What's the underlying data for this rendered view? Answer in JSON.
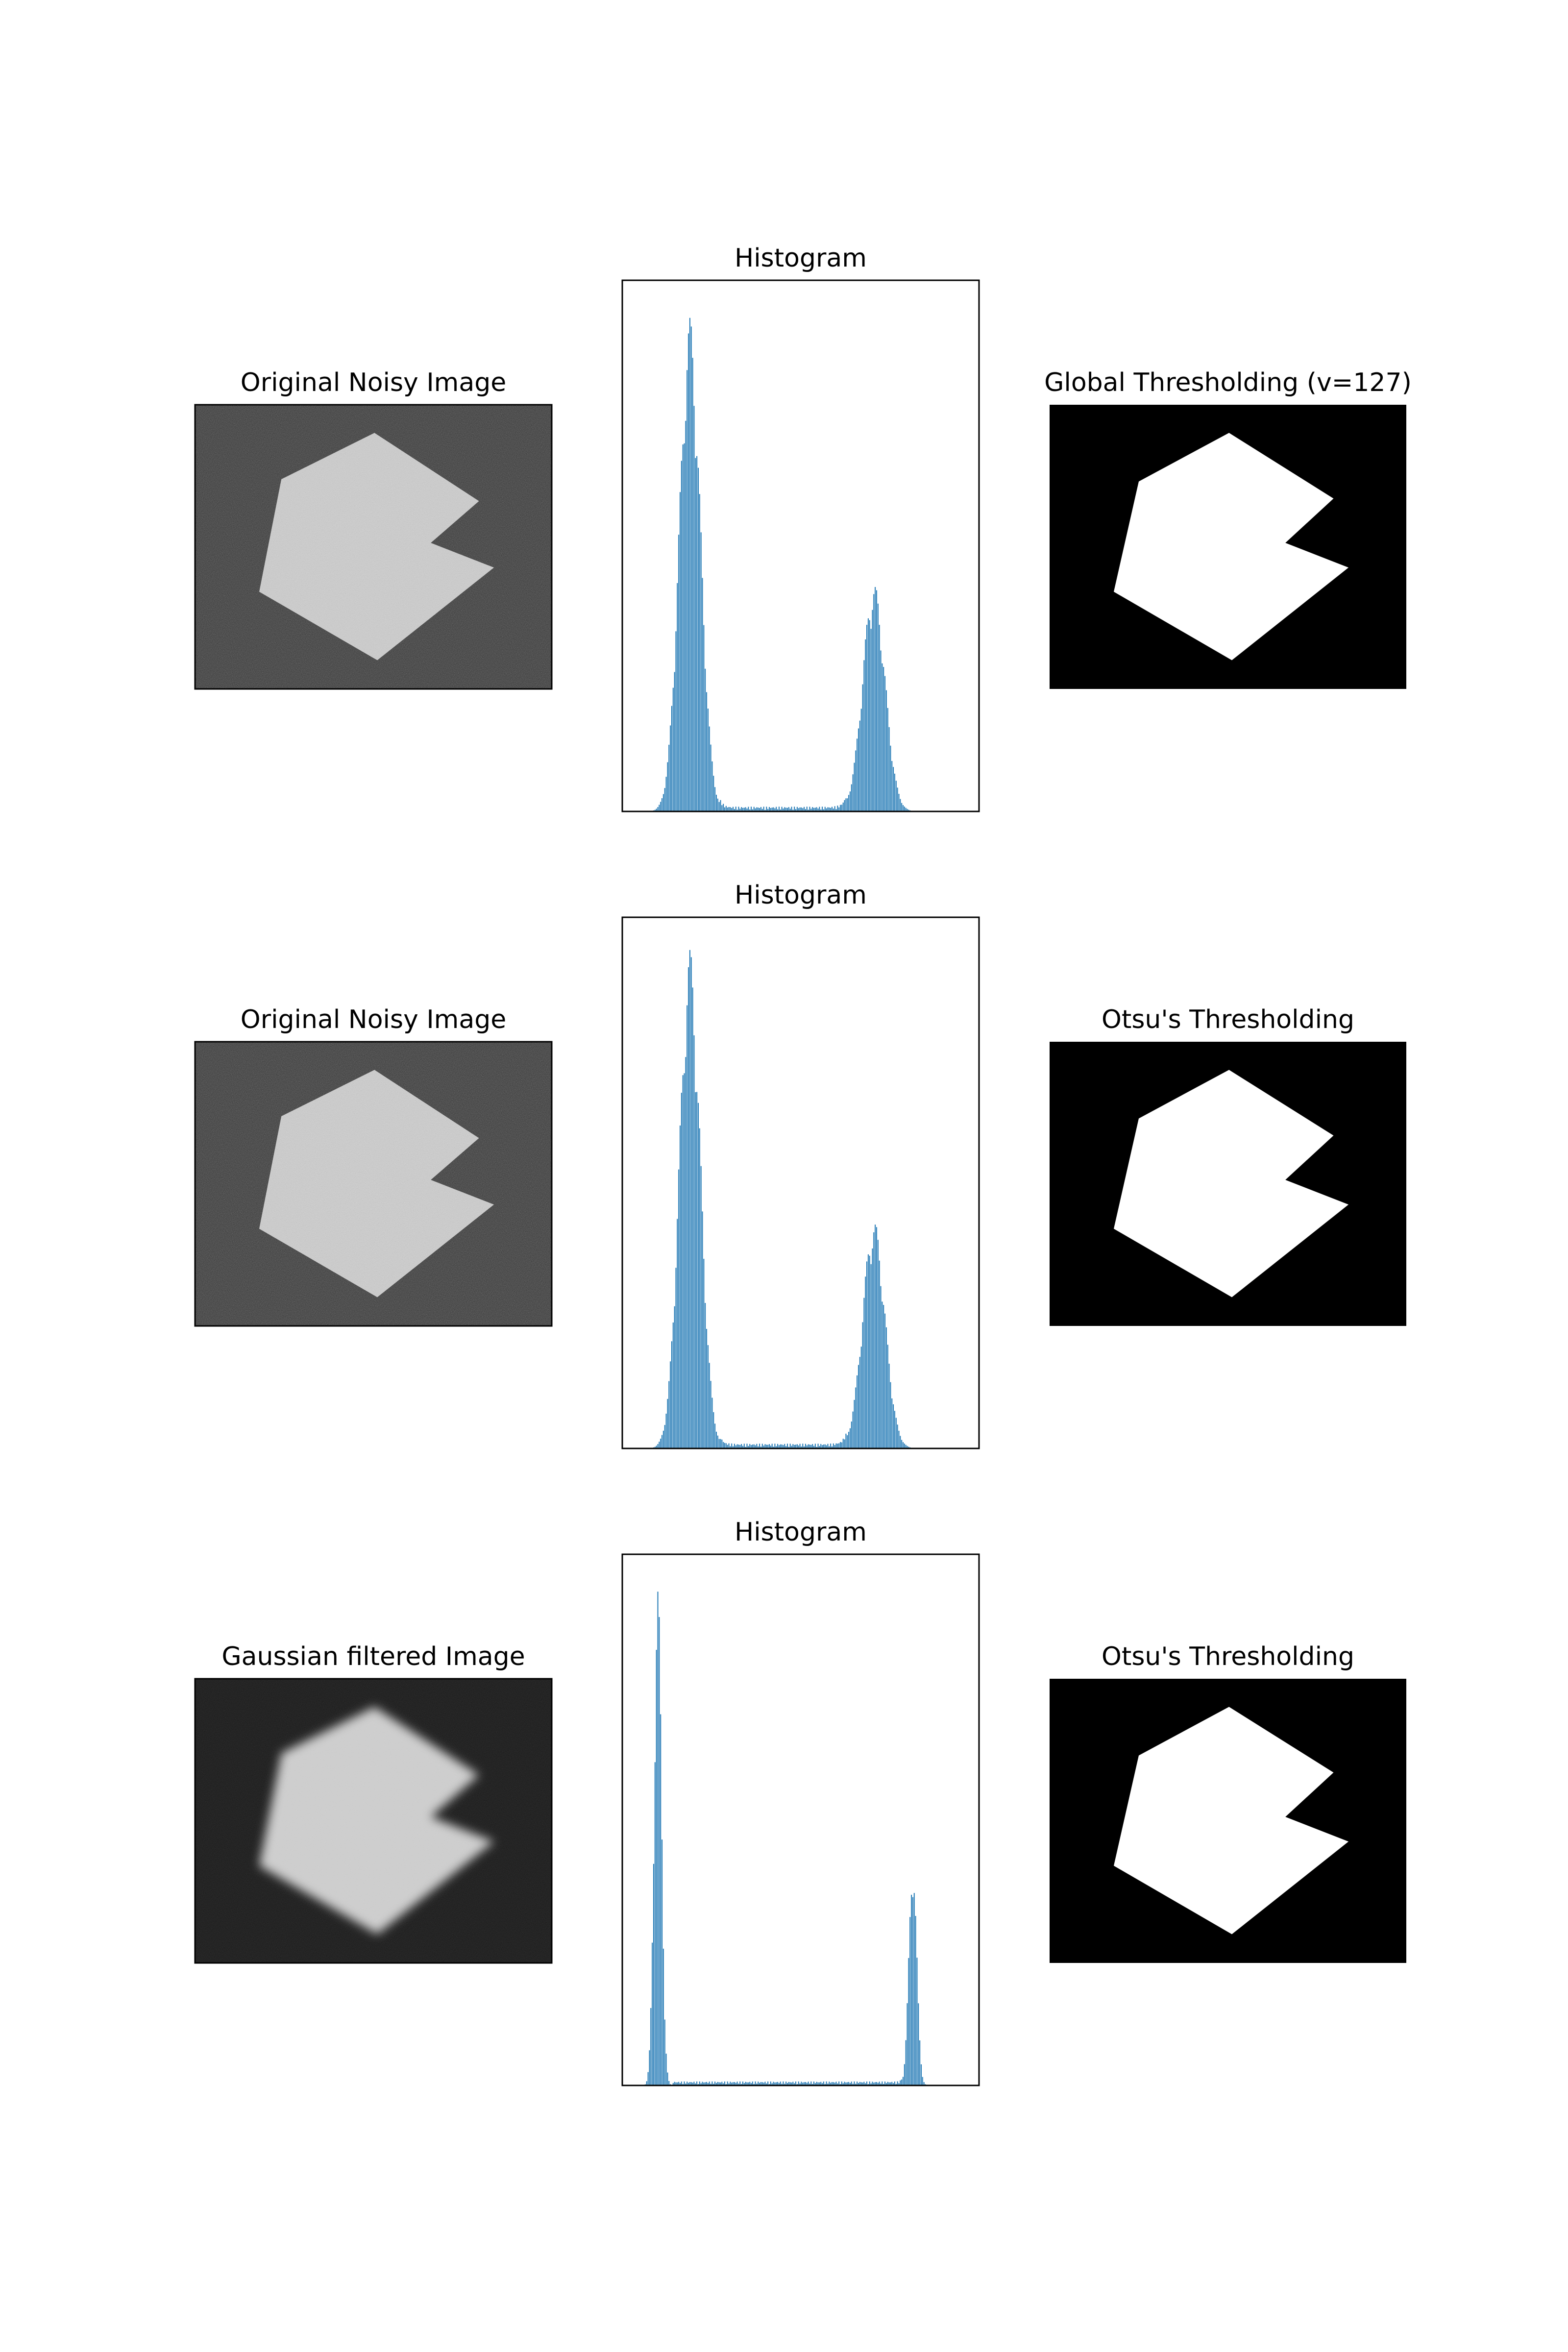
{
  "figure": {
    "rows": [
      {
        "image_title": "Original Noisy Image",
        "image_kind": "noisy",
        "histogram_title": "Histogram",
        "threshold_title": "Global Thresholding (v=127)"
      },
      {
        "image_title": "Original Noisy Image",
        "image_kind": "noisy",
        "histogram_title": "Histogram",
        "threshold_title": "Otsu's Thresholding"
      },
      {
        "image_title": "Gaussian filtered Image",
        "image_kind": "blurred",
        "histogram_title": "Histogram",
        "threshold_title": "Otsu's Thresholding"
      }
    ]
  },
  "chart_data": [
    {
      "type": "bar",
      "title": "Histogram",
      "xlabel": "",
      "ylabel": "",
      "xlim": [
        0,
        256
      ],
      "grid": false,
      "ticks": "hidden",
      "bar_color": "#1f77b4",
      "peaks": [
        {
          "center": 48,
          "width": 7.5,
          "height": 0.93
        },
        {
          "center": 180,
          "width": 8,
          "height": 0.43
        }
      ],
      "floor": {
        "from": 70,
        "to": 160,
        "height": 0.006
      }
    },
    {
      "type": "bar",
      "title": "Histogram",
      "xlabel": "",
      "ylabel": "",
      "xlim": [
        0,
        256
      ],
      "grid": false,
      "ticks": "hidden",
      "bar_color": "#1f77b4",
      "peaks": [
        {
          "center": 48,
          "width": 7.5,
          "height": 0.94
        },
        {
          "center": 180,
          "width": 8,
          "height": 0.43
        }
      ],
      "floor": {
        "from": 70,
        "to": 160,
        "height": 0.006
      }
    },
    {
      "type": "bar",
      "title": "Histogram",
      "xlabel": "",
      "ylabel": "",
      "xlim": [
        0,
        256
      ],
      "grid": false,
      "ticks": "hidden",
      "bar_color": "#1f77b4",
      "peaks": [
        {
          "center": 25,
          "width": 2.6,
          "height": 0.95
        },
        {
          "center": 208,
          "width": 2.8,
          "height": 0.43
        }
      ],
      "floor": {
        "from": 36,
        "to": 200,
        "height": 0.005
      }
    }
  ],
  "colors": {
    "background": "#ffffff",
    "axes": "#000000",
    "bar": "#1f77b4",
    "noisy_bg": "#2e2e2e",
    "noisy_shape": "#d0d0d0",
    "threshold_bg": "#000000",
    "threshold_shape": "#ffffff"
  }
}
